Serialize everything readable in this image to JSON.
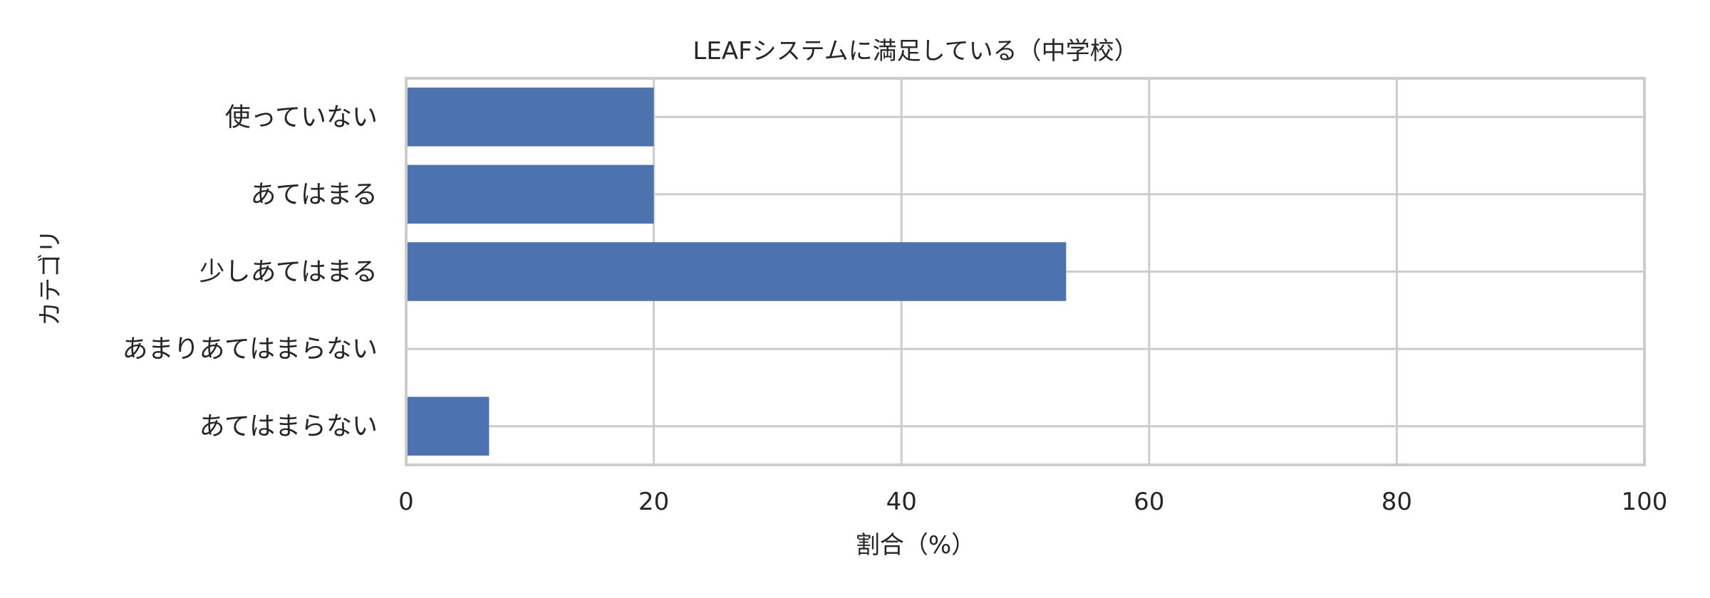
{
  "chart_data": {
    "type": "bar",
    "orientation": "horizontal",
    "title": "LEAFシステムに満足している（中学校）",
    "xlabel": "割合（%）",
    "ylabel": "カテゴリ",
    "categories": [
      "使っていない",
      "あてはまる",
      "少しあてはまる",
      "あまりあてはまらない",
      "あてはまらない"
    ],
    "values": [
      20.0,
      20.0,
      53.3,
      0.0,
      6.7
    ],
    "xlim": [
      0,
      100
    ],
    "xticks": [
      "0",
      "20",
      "40",
      "60",
      "80",
      "100"
    ],
    "grid": true,
    "bar_color": "#4c72b0"
  }
}
